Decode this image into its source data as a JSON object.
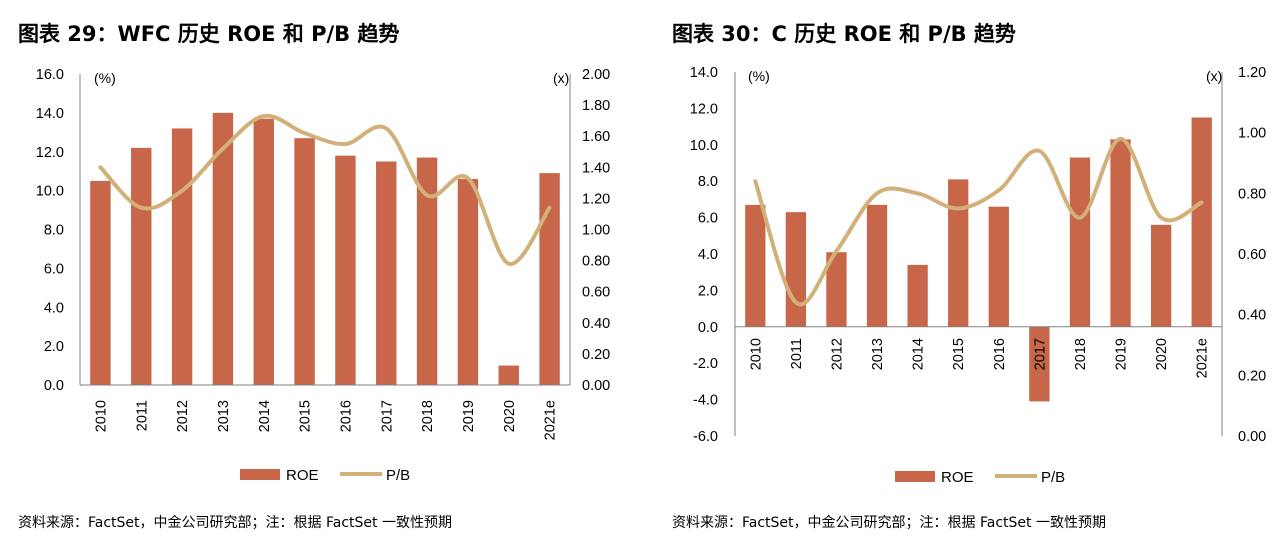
{
  "charts": [
    {
      "title": "图表 29：WFC 历史 ROE 和 P/B 趋势",
      "source": "资料来源：FactSet，中金公司研究部；注：根据 FactSet 一致性预期"
    },
    {
      "title": "图表 30：C 历史 ROE 和 P/B 趋势",
      "source": "资料来源：FactSet，中金公司研究部；注：根据 FactSet 一致性预期"
    }
  ],
  "chart_data": [
    {
      "type": "bar",
      "categories": [
        "2010",
        "2011",
        "2012",
        "2013",
        "2014",
        "2015",
        "2016",
        "2017",
        "2018",
        "2019",
        "2020",
        "2021e"
      ],
      "series": [
        {
          "name": "ROE",
          "type": "bar",
          "axis": "left",
          "color": "#C8664A",
          "values": [
            10.5,
            12.2,
            13.2,
            14.0,
            13.7,
            12.7,
            11.8,
            11.5,
            11.7,
            10.6,
            1.0,
            10.9
          ]
        },
        {
          "name": "P/B",
          "type": "line",
          "axis": "right",
          "color": "#D2B07A",
          "values": [
            1.4,
            1.14,
            1.25,
            1.52,
            1.73,
            1.62,
            1.55,
            1.65,
            1.22,
            1.33,
            0.78,
            1.14
          ]
        }
      ],
      "y_left": {
        "label": "(%)",
        "lim": [
          0,
          16
        ],
        "ticks": [
          "0.0",
          "2.0",
          "4.0",
          "6.0",
          "8.0",
          "10.0",
          "12.0",
          "14.0",
          "16.0"
        ]
      },
      "y_right": {
        "label": "(x)",
        "lim": [
          0,
          2
        ],
        "ticks": [
          "0.00",
          "0.20",
          "0.40",
          "0.60",
          "0.80",
          "1.00",
          "1.20",
          "1.40",
          "1.60",
          "1.80",
          "2.00"
        ]
      },
      "grid": false,
      "legend": "bottom-center"
    },
    {
      "type": "bar",
      "categories": [
        "2010",
        "2011",
        "2012",
        "2013",
        "2014",
        "2015",
        "2016",
        "2017",
        "2018",
        "2019",
        "2020",
        "2021e"
      ],
      "series": [
        {
          "name": "ROE",
          "type": "bar",
          "axis": "left",
          "color": "#C8664A",
          "values": [
            6.7,
            6.3,
            4.1,
            6.7,
            3.4,
            8.1,
            6.6,
            -4.1,
            9.3,
            10.3,
            5.6,
            11.5
          ]
        },
        {
          "name": "P/B",
          "type": "line",
          "axis": "right",
          "color": "#D2B07A",
          "values": [
            0.84,
            0.44,
            0.61,
            0.8,
            0.8,
            0.75,
            0.81,
            0.94,
            0.72,
            0.98,
            0.72,
            0.77
          ]
        }
      ],
      "y_left": {
        "label": "(%)",
        "lim": [
          -6,
          14
        ],
        "ticks": [
          "-6.0",
          "-4.0",
          "-2.0",
          "0.0",
          "2.0",
          "4.0",
          "6.0",
          "8.0",
          "10.0",
          "12.0",
          "14.0"
        ]
      },
      "y_right": {
        "label": "(x)",
        "lim": [
          0,
          1.2
        ],
        "ticks": [
          "0.00",
          "0.20",
          "0.40",
          "0.60",
          "0.80",
          "1.00",
          "1.20"
        ]
      },
      "grid": false,
      "legend": "bottom-center"
    }
  ]
}
